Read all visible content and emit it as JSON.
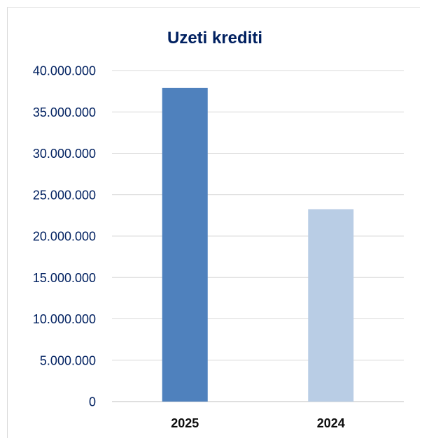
{
  "chart_data": {
    "type": "bar",
    "title": "Uzeti krediti",
    "xlabel": "",
    "ylabel": "",
    "categories": [
      "2025",
      "2024"
    ],
    "values": [
      37900000,
      23250000
    ],
    "bar_colors": [
      "#4f81bd",
      "#b9cde5"
    ],
    "ylim": [
      0,
      40000000
    ],
    "y_ticks": [
      0,
      5000000,
      10000000,
      15000000,
      20000000,
      25000000,
      30000000,
      35000000,
      40000000
    ],
    "y_tick_labels": [
      "0",
      "5.000.000",
      "10.000.000",
      "15.000.000",
      "20.000.000",
      "25.000.000",
      "30.000.000",
      "35.000.000",
      "40.000.000"
    ],
    "grid": true,
    "legend": "none",
    "colors": {
      "title": "#002060",
      "tick_text": "#002060",
      "category_text": "#0d0d0d",
      "gridline": "#d9d9d9",
      "axis_line": "#bfbfbf"
    }
  }
}
